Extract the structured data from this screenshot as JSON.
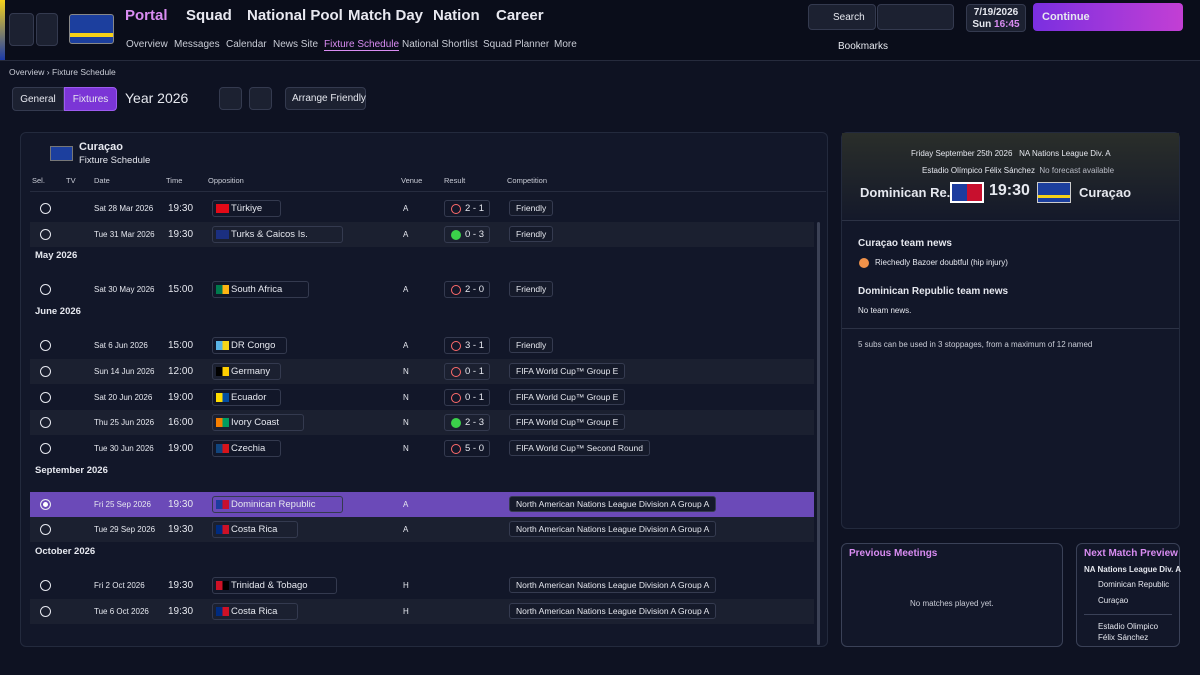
{
  "header": {
    "main_nav": [
      "Portal",
      "Squad",
      "National Pool",
      "Match Day",
      "Nation",
      "Career"
    ],
    "sub_nav": [
      "Overview",
      "Messages",
      "Calendar",
      "News Site",
      "Fixture Schedule",
      "National Shortlist",
      "Squad Planner",
      "More"
    ],
    "search": "Search",
    "date": "7/19/2026",
    "weekday": "Sun",
    "time": "16:45",
    "continue": "Continue",
    "bookmarks": "Bookmarks"
  },
  "breadcrumb": [
    "Overview",
    "Fixture Schedule"
  ],
  "toolbar": {
    "tabs": [
      "General",
      "Fixtures"
    ],
    "year": "Year 2026",
    "arrange": "Arrange Friendly"
  },
  "schedule": {
    "team": "Curaçao",
    "subtitle": "Fixture Schedule",
    "columns": [
      "Sel.",
      "TV",
      "Date",
      "Time",
      "Opposition",
      "Venue",
      "Result",
      "Competition"
    ],
    "groups": [
      {
        "label": null,
        "rows": [
          {
            "date": "Sat 28 Mar 2026",
            "time": "19:30",
            "opposition": "Türkiye",
            "venue": "A",
            "result": "2 - 1",
            "outcome": "loss",
            "competition": "Friendly"
          },
          {
            "date": "Tue 31 Mar 2026",
            "time": "19:30",
            "opposition": "Turks & Caicos Is.",
            "venue": "A",
            "result": "0 - 3",
            "outcome": "win",
            "competition": "Friendly"
          }
        ]
      },
      {
        "label": "May 2026",
        "rows": [
          {
            "date": "Sat 30 May 2026",
            "time": "15:00",
            "opposition": "South Africa",
            "venue": "A",
            "result": "2 - 0",
            "outcome": "loss",
            "competition": "Friendly"
          }
        ]
      },
      {
        "label": "June 2026",
        "rows": [
          {
            "date": "Sat 6 Jun 2026",
            "time": "15:00",
            "opposition": "DR Congo",
            "venue": "A",
            "result": "3 - 1",
            "outcome": "loss",
            "competition": "Friendly"
          },
          {
            "date": "Sun 14 Jun 2026",
            "time": "12:00",
            "opposition": "Germany",
            "venue": "N",
            "result": "0 - 1",
            "outcome": "loss",
            "competition": "FIFA World Cup™ Group E"
          },
          {
            "date": "Sat 20 Jun 2026",
            "time": "19:00",
            "opposition": "Ecuador",
            "venue": "N",
            "result": "0 - 1",
            "outcome": "loss",
            "competition": "FIFA World Cup™ Group E"
          },
          {
            "date": "Thu 25 Jun 2026",
            "time": "16:00",
            "opposition": "Ivory Coast",
            "venue": "N",
            "result": "2 - 3",
            "outcome": "win",
            "competition": "FIFA World Cup™ Group E"
          },
          {
            "date": "Tue 30 Jun 2026",
            "time": "19:00",
            "opposition": "Czechia",
            "venue": "N",
            "result": "5 - 0",
            "outcome": "loss",
            "competition": "FIFA World Cup™ Second Round"
          }
        ]
      },
      {
        "label": "September 2026",
        "rows": [
          {
            "date": "Fri 25 Sep 2026",
            "time": "19:30",
            "opposition": "Dominican Republic",
            "venue": "A",
            "result": null,
            "outcome": null,
            "competition": "North American Nations League Division A Group A",
            "selected": true
          },
          {
            "date": "Tue 29 Sep 2026",
            "time": "19:30",
            "opposition": "Costa Rica",
            "venue": "A",
            "result": null,
            "outcome": null,
            "competition": "North American Nations League Division A Group A"
          }
        ]
      },
      {
        "label": "October 2026",
        "rows": [
          {
            "date": "Fri 2 Oct 2026",
            "time": "19:30",
            "opposition": "Trinidad & Tobago",
            "venue": "H",
            "result": null,
            "outcome": null,
            "competition": "North American Nations League Division A Group A"
          },
          {
            "date": "Tue 6 Oct 2026",
            "time": "19:30",
            "opposition": "Costa Rica",
            "venue": "H",
            "result": null,
            "outcome": null,
            "competition": "North American Nations League Division A Group A"
          }
        ]
      }
    ]
  },
  "match": {
    "date": "Friday September 25th 2026",
    "competition": "NA Nations League Div. A",
    "stadium": "Estadio Olímpico Félix Sánchez",
    "forecast": "No forecast available",
    "home": "Dominican Re...",
    "kickoff": "19:30",
    "away": "Curaçao",
    "news": [
      {
        "title": "Curaçao team news",
        "item": "Riechedly Bazoer doubtful (hip injury)"
      },
      {
        "title": "Dominican Republic team news",
        "item": "No team news."
      }
    ],
    "subs": "5 subs can be used in 3 stoppages, from a maximum of 12 named"
  },
  "previous": {
    "title": "Previous Meetings",
    "text": "No matches played yet."
  },
  "preview": {
    "title": "Next Match Preview",
    "competition": "NA Nations League Div. A",
    "home": "Dominican Republic",
    "away": "Curaçao",
    "stadium": "Estadio Olimpico Félix Sánchez"
  }
}
